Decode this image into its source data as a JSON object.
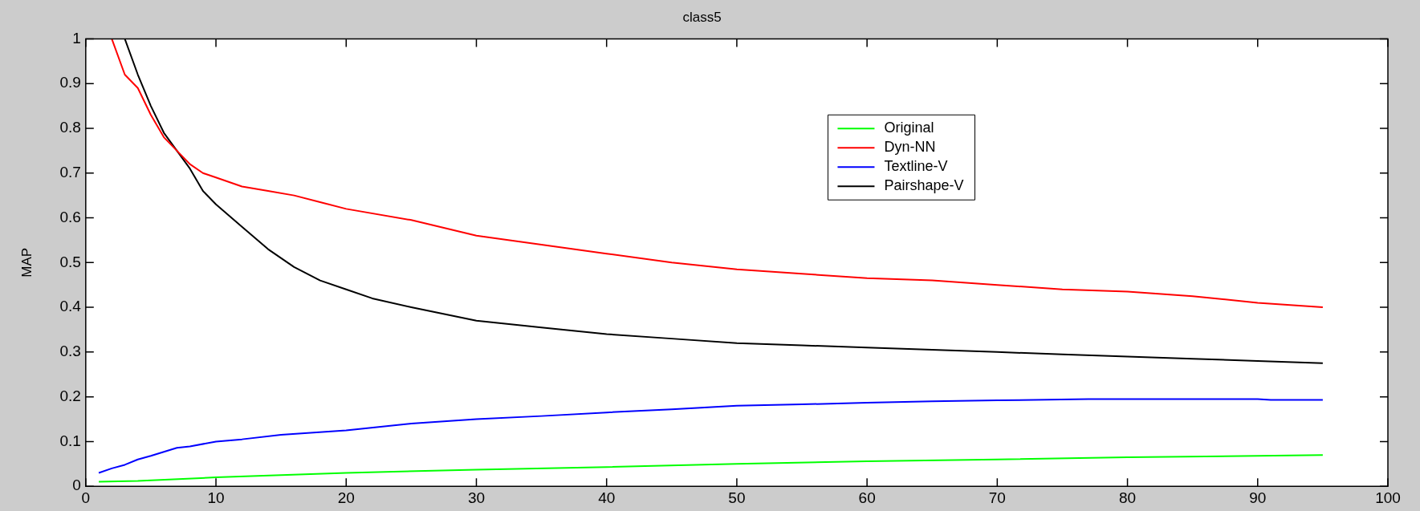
{
  "chart_data": {
    "type": "line",
    "title": "class5",
    "ylabel": "MAP",
    "xlim": [
      0,
      100
    ],
    "xticks": [
      0,
      10,
      20,
      30,
      40,
      50,
      60,
      70,
      80,
      90,
      100
    ],
    "ylim": [
      0,
      1
    ],
    "yticks": [
      0,
      0.1,
      0.2,
      0.3,
      0.4,
      0.5,
      0.6,
      0.7,
      0.8,
      0.9,
      1
    ],
    "grid": false,
    "legend": "top",
    "marker": "none",
    "line_style": "solid",
    "series": [
      {
        "name": "Original",
        "color": "#00ff00",
        "x": [
          1,
          4,
          10,
          20,
          30,
          40,
          50,
          60,
          70,
          80,
          90,
          95
        ],
        "values": [
          0.01,
          0.012,
          0.02,
          0.03,
          0.037,
          0.043,
          0.05,
          0.056,
          0.06,
          0.065,
          0.068,
          0.07
        ]
      },
      {
        "name": "Dyn-NN",
        "color": "#ff0000",
        "x": [
          2,
          3,
          4,
          5,
          6,
          7,
          8,
          9,
          10,
          12,
          14,
          16,
          18,
          20,
          25,
          30,
          35,
          40,
          45,
          50,
          55,
          60,
          65,
          70,
          75,
          80,
          85,
          90,
          95
        ],
        "values": [
          1,
          0.92,
          0.89,
          0.83,
          0.78,
          0.75,
          0.72,
          0.7,
          0.69,
          0.67,
          0.66,
          0.65,
          0.635,
          0.62,
          0.595,
          0.56,
          0.54,
          0.52,
          0.5,
          0.485,
          0.475,
          0.465,
          0.46,
          0.45,
          0.44,
          0.435,
          0.425,
          0.41,
          0.4
        ]
      },
      {
        "name": "Textline-V",
        "color": "#0000ff",
        "x": [
          1,
          2,
          3,
          4,
          5,
          6,
          7,
          8,
          10,
          12,
          15,
          20,
          25,
          30,
          35,
          40,
          45,
          50,
          55,
          60,
          65,
          70,
          77,
          90,
          91,
          95
        ],
        "values": [
          0.03,
          0.04,
          0.048,
          0.06,
          0.068,
          0.077,
          0.086,
          0.089,
          0.1,
          0.105,
          0.115,
          0.125,
          0.14,
          0.15,
          0.157,
          0.165,
          0.172,
          0.18,
          0.183,
          0.187,
          0.19,
          0.192,
          0.195,
          0.195,
          0.193,
          0.193
        ]
      },
      {
        "name": "Pairshape-V",
        "color": "#000000",
        "x": [
          3,
          4,
          5,
          6,
          7,
          8,
          9,
          10,
          12,
          14,
          16,
          18,
          20,
          22,
          25,
          30,
          35,
          40,
          45,
          50,
          55,
          60,
          65,
          70,
          75,
          80,
          85,
          90,
          95
        ],
        "values": [
          1,
          0.92,
          0.85,
          0.79,
          0.75,
          0.71,
          0.66,
          0.63,
          0.58,
          0.53,
          0.49,
          0.46,
          0.44,
          0.42,
          0.4,
          0.37,
          0.355,
          0.34,
          0.33,
          0.32,
          0.315,
          0.31,
          0.305,
          0.3,
          0.295,
          0.29,
          0.285,
          0.28,
          0.275
        ]
      }
    ]
  }
}
